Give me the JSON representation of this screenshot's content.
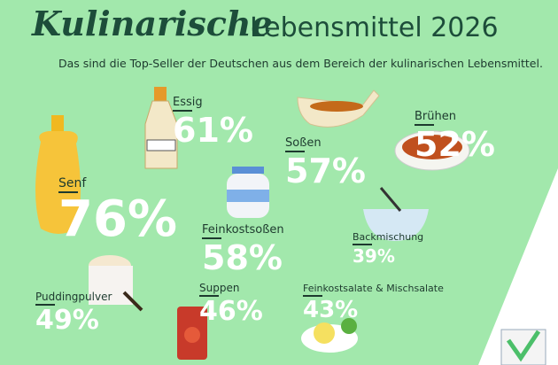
{
  "title": {
    "script": "Kulinarische",
    "main": "Lebensmittel 2026"
  },
  "subtitle": "Das sind die Top-Seller der Deutschen aus dem Bereich der kulinarischen Lebensmittel.",
  "items": [
    {
      "label": "Essig",
      "value": "61%"
    },
    {
      "label": "Soßen",
      "value": "57%"
    },
    {
      "label": "Brühen",
      "value": "52%"
    },
    {
      "label": "Senf",
      "value": "76%"
    },
    {
      "label": "Feinkostsoßen",
      "value": "58%"
    },
    {
      "label": "Backmischung",
      "value": "39%"
    },
    {
      "label": "Puddingpulver",
      "value": "49%"
    },
    {
      "label": "Suppen",
      "value": "46%"
    },
    {
      "label": "Feinkostsalate & Mischsalate",
      "value": "43%"
    }
  ]
}
